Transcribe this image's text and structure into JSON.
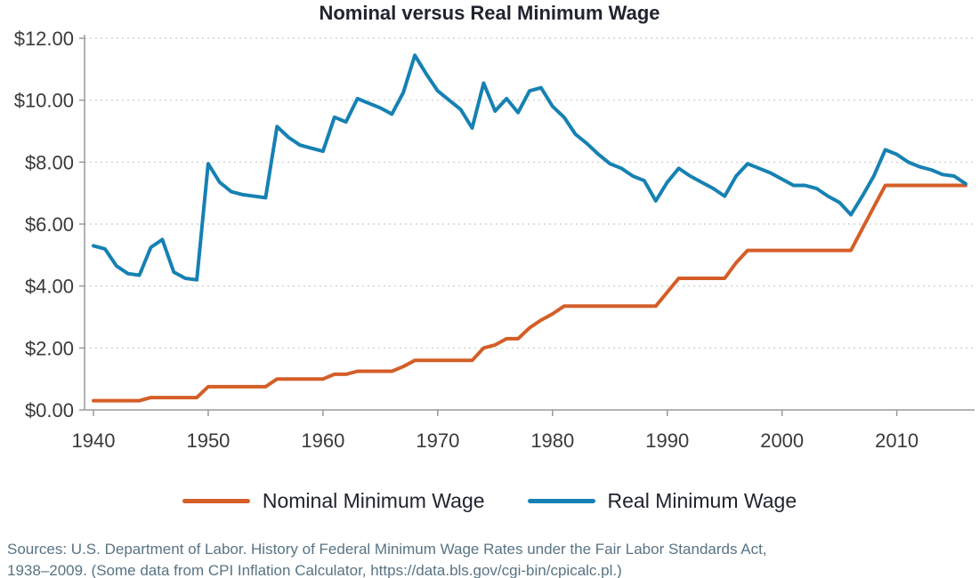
{
  "title": "Nominal versus Real Minimum Wage",
  "legend": {
    "nominal": "Nominal Minimum Wage",
    "real": "Real Minimum Wage"
  },
  "sources": {
    "line1": "Sources: U.S. Department of Labor. History of Federal Minimum Wage Rates under the Fair Labor Standards Act,",
    "line2": "1938–2009. (Some data from CPI Inflation Calculator, https://data.bls.gov/cgi-bin/cpicalc.pl.)"
  },
  "colors": {
    "nominal": "#d45e28",
    "real": "#1681b3",
    "grid": "#c9c9c9",
    "axis": "#9a9a9a",
    "text": "#3a3a3a",
    "title": "#21242e",
    "source_text": "#587383"
  },
  "chart_data": {
    "type": "line",
    "title": "Nominal versus Real Minimum Wage",
    "xlabel": "",
    "ylabel": "",
    "grid": true,
    "legend_position": "bottom",
    "ylim": [
      0,
      12
    ],
    "yticks": [
      0,
      2,
      4,
      6,
      8,
      10,
      12
    ],
    "ytick_labels": [
      "$0.00",
      "$2.00",
      "$4.00",
      "$6.00",
      "$8.00",
      "$10.00",
      "$12.00"
    ],
    "xticks": [
      1940,
      1950,
      1960,
      1970,
      1980,
      1990,
      2000,
      2010
    ],
    "x": [
      1940,
      1941,
      1942,
      1943,
      1944,
      1945,
      1946,
      1947,
      1948,
      1949,
      1950,
      1951,
      1952,
      1953,
      1954,
      1955,
      1956,
      1957,
      1958,
      1959,
      1960,
      1961,
      1962,
      1963,
      1964,
      1965,
      1966,
      1967,
      1968,
      1969,
      1970,
      1971,
      1972,
      1973,
      1974,
      1975,
      1976,
      1977,
      1978,
      1979,
      1980,
      1981,
      1982,
      1983,
      1984,
      1985,
      1986,
      1987,
      1988,
      1989,
      1990,
      1991,
      1992,
      1993,
      1994,
      1995,
      1996,
      1997,
      1998,
      1999,
      2000,
      2001,
      2002,
      2003,
      2004,
      2005,
      2006,
      2007,
      2008,
      2009,
      2010,
      2011,
      2012,
      2013,
      2014,
      2015,
      2016
    ],
    "series": [
      {
        "name": "Nominal Minimum Wage",
        "key": "nominal",
        "values": [
          0.3,
          0.3,
          0.3,
          0.3,
          0.3,
          0.4,
          0.4,
          0.4,
          0.4,
          0.4,
          0.75,
          0.75,
          0.75,
          0.75,
          0.75,
          0.75,
          1.0,
          1.0,
          1.0,
          1.0,
          1.0,
          1.15,
          1.15,
          1.25,
          1.25,
          1.25,
          1.25,
          1.4,
          1.6,
          1.6,
          1.6,
          1.6,
          1.6,
          1.6,
          2.0,
          2.1,
          2.3,
          2.3,
          2.65,
          2.9,
          3.1,
          3.35,
          3.35,
          3.35,
          3.35,
          3.35,
          3.35,
          3.35,
          3.35,
          3.35,
          3.8,
          4.25,
          4.25,
          4.25,
          4.25,
          4.25,
          4.75,
          5.15,
          5.15,
          5.15,
          5.15,
          5.15,
          5.15,
          5.15,
          5.15,
          5.15,
          5.15,
          5.85,
          6.55,
          7.25,
          7.25,
          7.25,
          7.25,
          7.25,
          7.25,
          7.25,
          7.25
        ]
      },
      {
        "name": "Real Minimum Wage",
        "key": "real",
        "values": [
          5.3,
          5.2,
          4.65,
          4.4,
          4.35,
          5.25,
          5.5,
          4.45,
          4.25,
          4.2,
          7.95,
          7.35,
          7.05,
          6.95,
          6.9,
          6.85,
          9.15,
          8.8,
          8.55,
          8.45,
          8.35,
          9.45,
          9.3,
          10.05,
          9.9,
          9.75,
          9.55,
          10.25,
          11.45,
          10.85,
          10.3,
          10.0,
          9.7,
          9.1,
          10.55,
          9.65,
          10.05,
          9.6,
          10.3,
          10.4,
          9.8,
          9.45,
          8.9,
          8.6,
          8.25,
          7.95,
          7.8,
          7.55,
          7.4,
          6.75,
          7.35,
          7.8,
          7.55,
          7.35,
          7.15,
          6.9,
          7.55,
          7.95,
          7.8,
          7.65,
          7.45,
          7.25,
          7.25,
          7.15,
          6.9,
          6.7,
          6.3,
          6.9,
          7.55,
          8.4,
          8.25,
          8.0,
          7.85,
          7.75,
          7.6,
          7.55,
          7.3
        ]
      }
    ]
  }
}
